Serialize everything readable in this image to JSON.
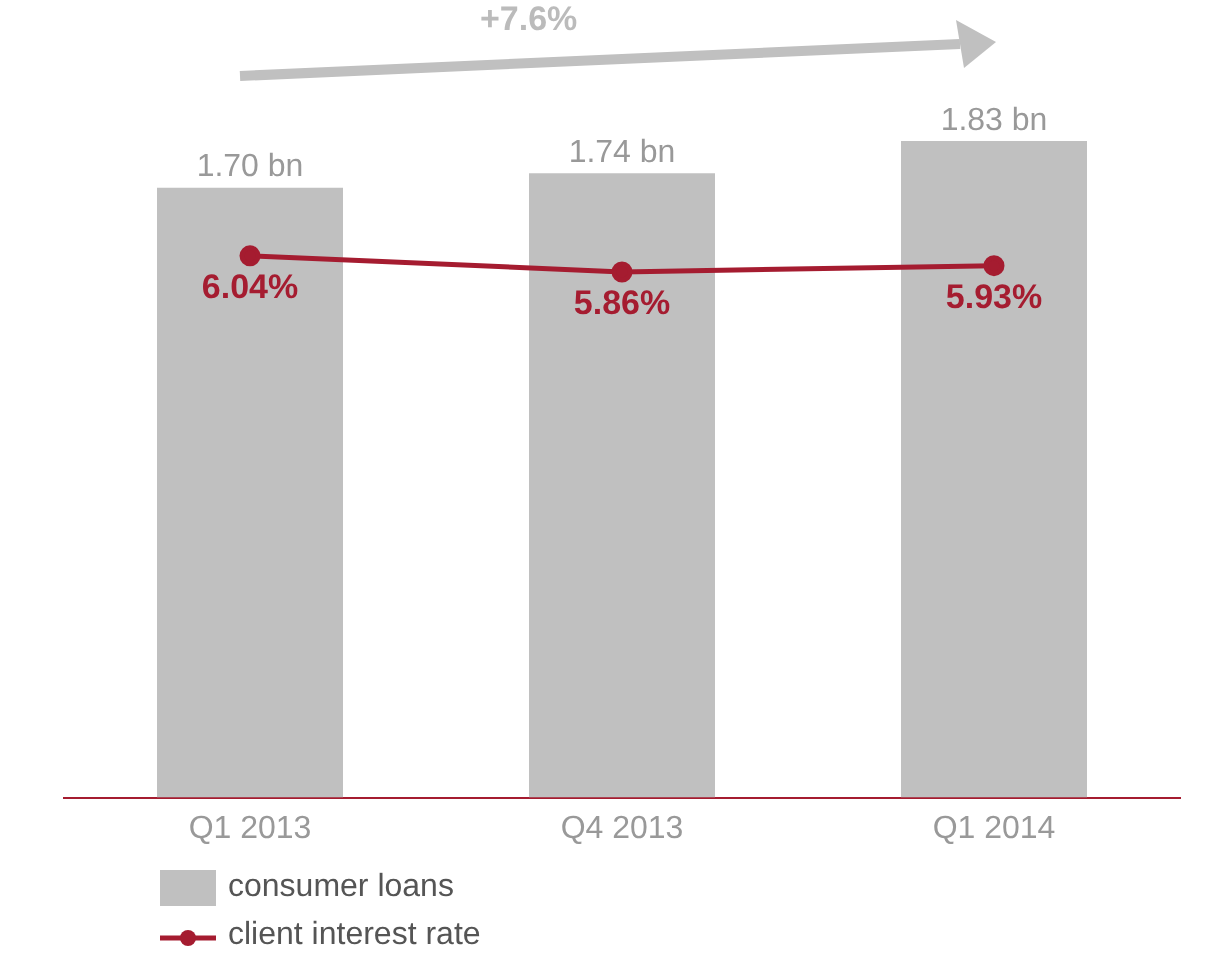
{
  "chart_data": {
    "type": "bar",
    "categories": [
      "Q1 2013",
      "Q4 2013",
      "Q1 2014"
    ],
    "series": [
      {
        "name": "consumer loans",
        "color": "#c0c0c0",
        "values": [
          1.7,
          1.74,
          1.83
        ],
        "value_labels": [
          "1.70 bn",
          "1.74 bn",
          "1.83 bn"
        ]
      },
      {
        "name": "client interest rate",
        "type": "line",
        "axis": "y2",
        "color": "#a51c30",
        "values": [
          6.04,
          5.86,
          5.93
        ],
        "value_labels": [
          "6.04%",
          "5.86%",
          "5.93%"
        ]
      }
    ],
    "tick_labels": "x",
    "grid": false,
    "legend": "bottom left",
    "marker": "circle",
    "line_style": "solid",
    "annotations": [
      "+7.6%"
    ]
  }
}
